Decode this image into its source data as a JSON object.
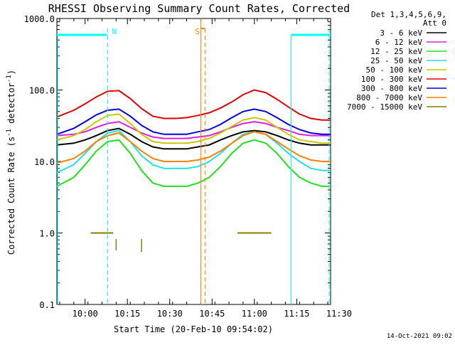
{
  "chart_data": {
    "type": "line",
    "title": "RHESSI Observing Summary Count Rates, Corrected",
    "xlabel": "Start Time (20-Feb-10 09:54:02)",
    "ylabel_main": "Corrected Count Rate (s",
    "ylabel_sup1": "-1",
    "ylabel_mid": " detector",
    "ylabel_sup2": "-1",
    "ylabel_end": ")",
    "yscale": "log",
    "ylim": [
      0.1,
      1000
    ],
    "yticks": [
      {
        "value": 1000,
        "label": "1000.0"
      },
      {
        "value": 100,
        "label": "100.0"
      },
      {
        "value": 10,
        "label": "10.0"
      },
      {
        "value": 1,
        "label": "1.0"
      },
      {
        "value": 0.1,
        "label": "0.1"
      }
    ],
    "xlim_min": [
      -4,
      93
    ],
    "xticks": [
      {
        "value": 6,
        "label": "10:00"
      },
      {
        "value": 21,
        "label": "10:15"
      },
      {
        "value": 36,
        "label": "10:30"
      },
      {
        "value": 51,
        "label": "10:45"
      },
      {
        "value": 66,
        "label": "11:00"
      },
      {
        "value": 81,
        "label": "11:15"
      },
      {
        "value": 96,
        "label": "11:30"
      }
    ],
    "legend_header": [
      "Det 1,3,4,5,6,9,",
      "Att 0"
    ],
    "legend_position": "right",
    "series": [
      {
        "name": "3 - 6 keV",
        "color": "#000000",
        "x": [
          -4,
          2,
          6,
          10,
          14,
          18,
          22,
          26,
          30,
          34,
          38,
          42,
          46,
          50,
          54,
          58,
          62,
          66,
          70,
          74,
          78,
          82,
          86,
          90,
          93
        ],
        "y": [
          17,
          18,
          20,
          23,
          27,
          29,
          24,
          19,
          16,
          15,
          15,
          15,
          16,
          17,
          20,
          23,
          26,
          27,
          26,
          23,
          20,
          18,
          17,
          17,
          17
        ]
      },
      {
        "name": "6 - 12 keV",
        "color": "#e020e0",
        "x": [
          -4,
          2,
          6,
          10,
          14,
          18,
          22,
          26,
          30,
          34,
          38,
          42,
          46,
          50,
          54,
          58,
          62,
          66,
          70,
          74,
          78,
          82,
          86,
          90,
          93
        ],
        "y": [
          23,
          24,
          26,
          30,
          34,
          36,
          30,
          25,
          22,
          21,
          21,
          21,
          22,
          23,
          26,
          30,
          34,
          36,
          34,
          30,
          27,
          24,
          23,
          23,
          23
        ]
      },
      {
        "name": "12 - 25 keV",
        "color": "#20e020",
        "x": [
          -4,
          2,
          6,
          10,
          14,
          18,
          22,
          26,
          30,
          34,
          38,
          42,
          46,
          50,
          54,
          58,
          62,
          66,
          70,
          74,
          78,
          82,
          86,
          90,
          93
        ],
        "y": [
          4.5,
          6,
          9,
          14,
          19,
          20,
          13,
          7.5,
          5,
          4.5,
          4.5,
          4.5,
          5,
          6,
          8.5,
          13,
          18,
          20,
          18,
          13,
          8.5,
          6,
          5,
          4.5,
          4.5
        ]
      },
      {
        "name": "25 - 50 keV",
        "color": "#20e0e0",
        "x": [
          -4,
          2,
          6,
          10,
          14,
          18,
          22,
          26,
          30,
          34,
          38,
          42,
          46,
          50,
          54,
          58,
          62,
          66,
          70,
          74,
          78,
          82,
          86,
          90,
          93
        ],
        "y": [
          7,
          9,
          13,
          19,
          25,
          27,
          19,
          12,
          9,
          8,
          8,
          8,
          8.5,
          10,
          13,
          18,
          24,
          26,
          24,
          18,
          13,
          10,
          8,
          7.5,
          7.5
        ]
      },
      {
        "name": "50 - 100 keV",
        "color": "#c8c800",
        "x": [
          -4,
          2,
          6,
          10,
          14,
          18,
          22,
          26,
          30,
          34,
          38,
          42,
          46,
          50,
          54,
          58,
          62,
          66,
          70,
          74,
          78,
          82,
          86,
          90,
          93
        ],
        "y": [
          20,
          23,
          28,
          36,
          44,
          46,
          34,
          24,
          19,
          18,
          18,
          18,
          19,
          21,
          25,
          31,
          38,
          41,
          38,
          30,
          24,
          20,
          19,
          18,
          18
        ]
      },
      {
        "name": "100 - 300 keV",
        "color": "#e00000",
        "x": [
          -4,
          2,
          6,
          10,
          14,
          18,
          22,
          26,
          30,
          34,
          38,
          42,
          46,
          50,
          54,
          58,
          62,
          66,
          70,
          74,
          78,
          82,
          86,
          90,
          93
        ],
        "y": [
          42,
          52,
          64,
          80,
          96,
          98,
          76,
          55,
          43,
          40,
          40,
          41,
          44,
          48,
          56,
          68,
          86,
          100,
          92,
          74,
          58,
          46,
          40,
          38,
          38
        ]
      },
      {
        "name": "300 - 800 keV",
        "color": "#0000e0",
        "x": [
          -4,
          2,
          6,
          10,
          14,
          18,
          22,
          26,
          30,
          34,
          38,
          42,
          46,
          50,
          54,
          58,
          62,
          66,
          70,
          74,
          78,
          82,
          86,
          90,
          93
        ],
        "y": [
          24,
          29,
          36,
          45,
          52,
          54,
          43,
          32,
          26,
          24,
          24,
          24,
          26,
          28,
          33,
          41,
          50,
          54,
          50,
          41,
          33,
          28,
          25,
          24,
          24
        ]
      },
      {
        "name": "800 - 7000 keV",
        "color": "#ff8000",
        "x": [
          -4,
          2,
          6,
          10,
          14,
          18,
          22,
          26,
          30,
          34,
          38,
          42,
          46,
          50,
          54,
          58,
          62,
          66,
          70,
          74,
          78,
          82,
          86,
          90,
          93
        ],
        "y": [
          9.5,
          11,
          14,
          19,
          23,
          25,
          19,
          14,
          11,
          10,
          10,
          10,
          10.5,
          11.5,
          14,
          18,
          23,
          26,
          24,
          19,
          15,
          12,
          10.5,
          10,
          10
        ]
      },
      {
        "name": "7000 - 15000 keV",
        "color": "#808000",
        "x": [
          8,
          16,
          24,
          60,
          72
        ],
        "y": [
          1,
          1,
          null,
          1,
          1
        ]
      }
    ],
    "annotations": [
      {
        "label": "N",
        "x": 14,
        "color": "#00ffff"
      },
      {
        "label": "S",
        "x": 48,
        "color": "#ff8000"
      }
    ],
    "timestamp": "14-Oct-2021 09:02"
  }
}
